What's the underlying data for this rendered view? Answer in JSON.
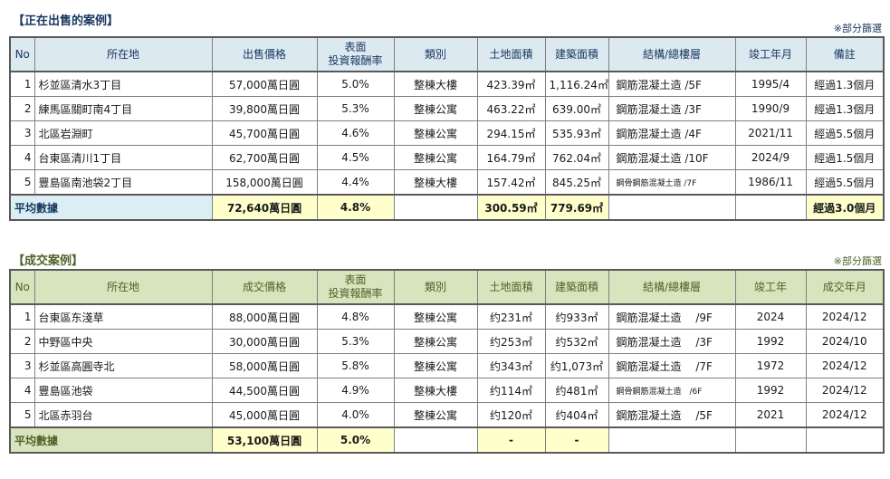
{
  "colors": {
    "table1_theme_text": "#17375E",
    "table1_header_bg": "#DCE9F1",
    "table1_avg_label_bg": "#DAEEF3",
    "table2_theme_text": "#4F6228",
    "table2_header_bg": "#D7E4BD",
    "avg_value_bg": "#FFFFCC",
    "grid_border": "#808080"
  },
  "table1": {
    "title": "【正在出售的案例】",
    "note": "※部分篩選",
    "headers": {
      "no": "No",
      "location": "所在地",
      "price": "出售價格",
      "yield1": "表面",
      "yield2": "投資報酬率",
      "category": "類別",
      "land": "土地面積",
      "building": "建築面積",
      "structure": "結構/總樓層",
      "completion": "竣工年月",
      "last": "備註"
    },
    "rows": [
      {
        "no": "1",
        "location": "杉並區清水3丁目",
        "price": "57,000萬日圓",
        "yield": "5.0%",
        "category": "整棟大樓",
        "land": "423.39㎡",
        "building": "1,116.24㎡",
        "structure": "鋼筋混凝土造 /5F",
        "small": false,
        "completion": "1995/4",
        "last": "經過1.3個月"
      },
      {
        "no": "2",
        "location": "練馬區關町南4丁目",
        "price": "39,800萬日圓",
        "yield": "5.3%",
        "category": "整棟公寓",
        "land": "463.22㎡",
        "building": "639.00㎡",
        "structure": "鋼筋混凝土造 /3F",
        "small": false,
        "completion": "1990/9",
        "last": "經過1.3個月"
      },
      {
        "no": "3",
        "location": "北區岩淵町",
        "price": "45,700萬日圓",
        "yield": "4.6%",
        "category": "整棟公寓",
        "land": "294.15㎡",
        "building": "535.93㎡",
        "structure": "鋼筋混凝土造 /4F",
        "small": false,
        "completion": "2021/11",
        "last": "經過5.5個月"
      },
      {
        "no": "4",
        "location": "台東區清川1丁目",
        "price": "62,700萬日圓",
        "yield": "4.5%",
        "category": "整棟公寓",
        "land": "164.79㎡",
        "building": "762.04㎡",
        "structure": "鋼筋混凝土造 /10F",
        "small": false,
        "completion": "2024/9",
        "last": "經過1.5個月"
      },
      {
        "no": "5",
        "location": "豐島區南池袋2丁目",
        "price": "158,000萬日圓",
        "yield": "4.4%",
        "category": "整棟大樓",
        "land": "157.42㎡",
        "building": "845.25㎡",
        "structure": "鋼骨鋼筋混凝土造 /7F",
        "small": true,
        "completion": "1986/11",
        "last": "經過5.5個月"
      }
    ],
    "average": {
      "label": "平均數據",
      "price": "72,640萬日圓",
      "yield": "4.8%",
      "category": "",
      "land": "300.59㎡",
      "building": "779.69㎡",
      "structure": "",
      "completion": "",
      "last": "經過3.0個月"
    }
  },
  "table2": {
    "title": "【成交案例】",
    "note": "※部分篩選",
    "headers": {
      "no": "No",
      "location": "所在地",
      "price": "成交價格",
      "yield1": "表面",
      "yield2": "投資報酬率",
      "category": "類別",
      "land": "土地面積",
      "building": "建築面積",
      "structure": "結構/總樓層",
      "completion": "竣工年",
      "last": "成交年月"
    },
    "rows": [
      {
        "no": "1",
        "location": "台東區东淺草",
        "price": "88,000萬日圓",
        "yield": "4.8%",
        "category": "整棟公寓",
        "land": "约231㎡",
        "building": "约933㎡",
        "structure": "鋼筋混凝土造　 /9F",
        "small": false,
        "completion": "2024",
        "last": "2024/12"
      },
      {
        "no": "2",
        "location": "中野區中央",
        "price": "30,000萬日圓",
        "yield": "5.3%",
        "category": "整棟公寓",
        "land": "约253㎡",
        "building": "约532㎡",
        "structure": "鋼筋混凝土造　 /3F",
        "small": false,
        "completion": "1992",
        "last": "2024/10"
      },
      {
        "no": "3",
        "location": "杉並區高圓寺北",
        "price": "58,000萬日圓",
        "yield": "5.8%",
        "category": "整棟公寓",
        "land": "约343㎡",
        "building": "约1,073㎡",
        "structure": "鋼筋混凝土造　 /7F",
        "small": false,
        "completion": "1972",
        "last": "2024/12"
      },
      {
        "no": "4",
        "location": "豐島區池袋",
        "price": "44,500萬日圓",
        "yield": "4.9%",
        "category": "整棟大樓",
        "land": "约114㎡",
        "building": "约481㎡",
        "structure": "鋼骨鋼筋混凝土造　/6F",
        "small": true,
        "completion": "1992",
        "last": "2024/12"
      },
      {
        "no": "5",
        "location": "北區赤羽台",
        "price": "45,000萬日圓",
        "yield": "4.0%",
        "category": "整棟公寓",
        "land": "约120㎡",
        "building": "约404㎡",
        "structure": "鋼筋混凝土造　 /5F",
        "small": false,
        "completion": "2021",
        "last": "2024/12"
      }
    ],
    "average": {
      "label": "平均數據",
      "price": "53,100萬日圓",
      "yield": "5.0%",
      "category": "",
      "land": "-",
      "building": "-",
      "structure": "",
      "completion": "",
      "last": ""
    }
  }
}
